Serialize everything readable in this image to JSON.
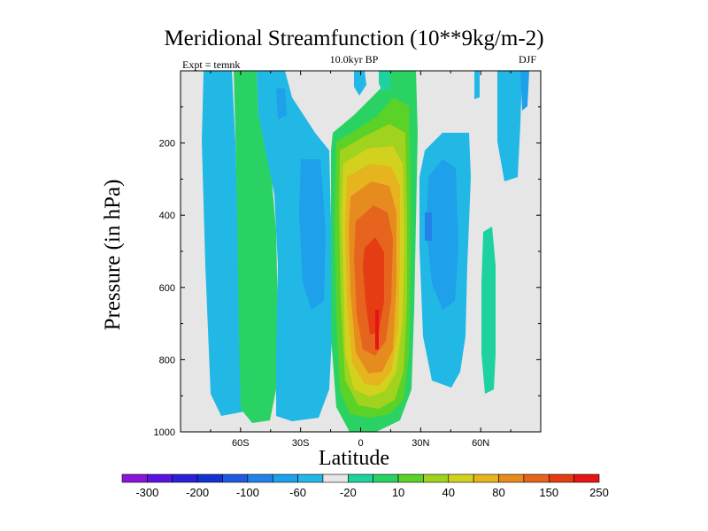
{
  "chart_data": {
    "type": "heatmap",
    "title": "Meridional Streamfunction (10**9kg/m-2)",
    "left_string": "Expt = temnk",
    "center_string": "10.0kyr BP",
    "right_string": "DJF",
    "xlabel": "Latitude",
    "ylabel": "Pressure (in hPa)",
    "xlim": [
      -90,
      90
    ],
    "ylim": [
      1000,
      0
    ],
    "x_ticks": [
      {
        "value": -60,
        "label": "60S"
      },
      {
        "value": -30,
        "label": "30S"
      },
      {
        "value": 0,
        "label": "0"
      },
      {
        "value": 30,
        "label": "30N"
      },
      {
        "value": 60,
        "label": "60N"
      }
    ],
    "y_ticks": [
      {
        "value": 200,
        "label": "200"
      },
      {
        "value": 400,
        "label": "400"
      },
      {
        "value": 600,
        "label": "600"
      },
      {
        "value": 800,
        "label": "800"
      },
      {
        "value": 1000,
        "label": "1000"
      }
    ],
    "colorbar": {
      "colors": [
        "#8a14d8",
        "#5a14e0",
        "#2a20d8",
        "#1432d2",
        "#1e5ae0",
        "#2382e8",
        "#1ea0ea",
        "#22b8e6",
        "#e6e6e6",
        "#1ed2a0",
        "#2ad264",
        "#5ad228",
        "#a0d21e",
        "#d2d21e",
        "#e6b41e",
        "#e68c1e",
        "#e6641e",
        "#e63c14",
        "#e61414"
      ],
      "labels": [
        "-300",
        "-200",
        "-100",
        "-60",
        "-20",
        "10",
        "40",
        "80",
        "150",
        "250"
      ]
    },
    "cells": [
      {
        "lat": -60,
        "p": 550,
        "v": -20
      },
      {
        "lat": -45,
        "p": 550,
        "v": 40
      },
      {
        "lat": -30,
        "p": 500,
        "v": -20
      },
      {
        "lat": 10,
        "p": 500,
        "v": 250
      },
      {
        "lat": 35,
        "p": 500,
        "v": -20
      },
      {
        "lat": 64,
        "p": 700,
        "v": 10
      }
    ]
  }
}
